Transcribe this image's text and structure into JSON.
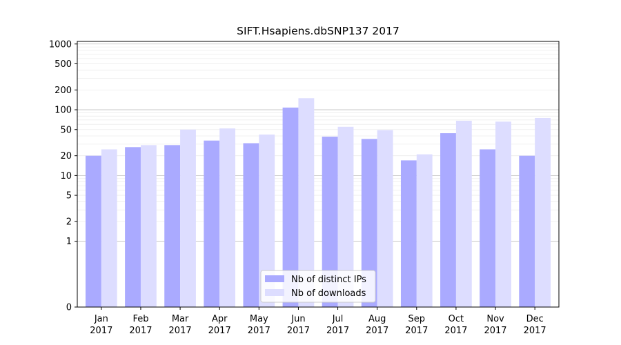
{
  "chart_data": {
    "type": "bar",
    "title": "SIFT.Hsapiens.dbSNP137 2017",
    "xlabel": "",
    "ylabel": "",
    "y_scale": "symlog",
    "ylim": [
      0,
      1300
    ],
    "y_ticks": [
      0,
      1,
      2,
      5,
      10,
      20,
      50,
      100,
      200,
      500,
      1000
    ],
    "grid": true,
    "legend_position": "lower center",
    "categories": [
      [
        "Jan",
        "2017"
      ],
      [
        "Feb",
        "2017"
      ],
      [
        "Mar",
        "2017"
      ],
      [
        "Apr",
        "2017"
      ],
      [
        "May",
        "2017"
      ],
      [
        "Jun",
        "2017"
      ],
      [
        "Jul",
        "2017"
      ],
      [
        "Aug",
        "2017"
      ],
      [
        "Sep",
        "2017"
      ],
      [
        "Oct",
        "2017"
      ],
      [
        "Nov",
        "2017"
      ],
      [
        "Dec",
        "2017"
      ]
    ],
    "series": [
      {
        "name": "Nb of distinct IPs",
        "color": "#aaaaff",
        "values": [
          20,
          27,
          29,
          34,
          31,
          108,
          39,
          36,
          17,
          44,
          25,
          20
        ]
      },
      {
        "name": "Nb of downloads",
        "color": "#ddddff",
        "values": [
          25,
          29,
          50,
          52,
          42,
          150,
          55,
          49,
          21,
          68,
          66,
          75
        ]
      }
    ]
  }
}
